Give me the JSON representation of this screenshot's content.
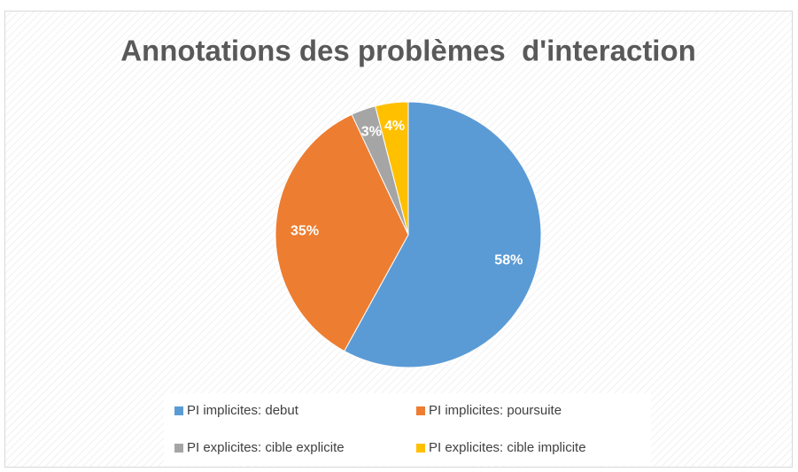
{
  "chart_data": {
    "type": "pie",
    "title": "Annotations des problèmes  d'interaction",
    "categories": [
      "PI implicites: debut",
      "PI implicites: poursuite",
      "PI explicites: cible explicite",
      "PI explicites: cible implicite"
    ],
    "values": [
      58,
      35,
      3,
      4
    ],
    "value_labels": [
      "58%",
      "35%",
      "3%",
      "4%"
    ],
    "colors": [
      "#5b9bd5",
      "#ed7d31",
      "#a5a5a5",
      "#ffc000"
    ],
    "legend": "bottom"
  }
}
